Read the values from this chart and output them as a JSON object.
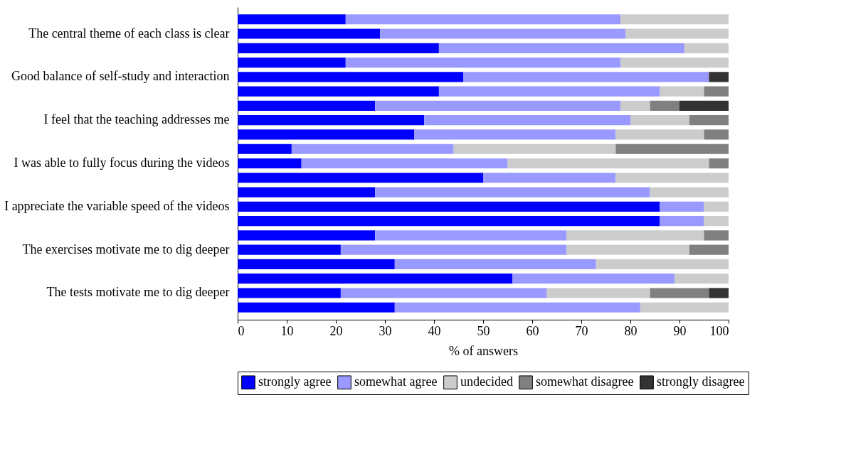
{
  "chart_data": {
    "type": "bar",
    "orientation": "horizontal",
    "stacked": true,
    "categories": [
      null,
      "The central theme of each class is clear",
      null,
      null,
      "Good balance of self-study and interaction",
      null,
      null,
      "I feel that the teaching addresses me",
      null,
      null,
      "I was able to fully focus during the videos",
      null,
      null,
      "I appreciate the variable speed of the videos",
      null,
      null,
      "The exercises motivate me to dig deeper",
      null,
      null,
      "The tests motivate me to dig deeper",
      null
    ],
    "series": [
      {
        "name": "strongly agree",
        "color": "#0000ff",
        "values": [
          22,
          29,
          41,
          22,
          46,
          41,
          28,
          38,
          36,
          11,
          13,
          50,
          28,
          86,
          86,
          28,
          21,
          32,
          56,
          21,
          32
        ]
      },
      {
        "name": "somewhat agree",
        "color": "#9999ff",
        "values": [
          56,
          50,
          50,
          56,
          50,
          45,
          50,
          42,
          41,
          33,
          42,
          27,
          56,
          9,
          9,
          39,
          46,
          41,
          33,
          42,
          50
        ]
      },
      {
        "name": "undecided",
        "color": "#cccccc",
        "values": [
          22,
          21,
          9,
          22,
          0,
          9,
          6,
          12,
          18,
          33,
          41,
          23,
          16,
          5,
          5,
          28,
          25,
          27,
          11,
          21,
          18
        ]
      },
      {
        "name": "somewhat disagree",
        "color": "#808080",
        "values": [
          0,
          0,
          0,
          0,
          0,
          5,
          6,
          8,
          5,
          23,
          4,
          0,
          0,
          0,
          0,
          5,
          8,
          0,
          0,
          12,
          0
        ]
      },
      {
        "name": "strongly disagree",
        "color": "#333333",
        "values": [
          0,
          0,
          0,
          0,
          4,
          0,
          10,
          0,
          0,
          0,
          0,
          0,
          0,
          0,
          0,
          0,
          0,
          0,
          0,
          4,
          0
        ]
      }
    ],
    "xlim": [
      0,
      100
    ],
    "xticks": [
      0,
      10,
      20,
      30,
      40,
      50,
      60,
      70,
      80,
      90,
      100
    ],
    "xlabel": "% of answers",
    "legend": "bottom",
    "grid": false
  }
}
